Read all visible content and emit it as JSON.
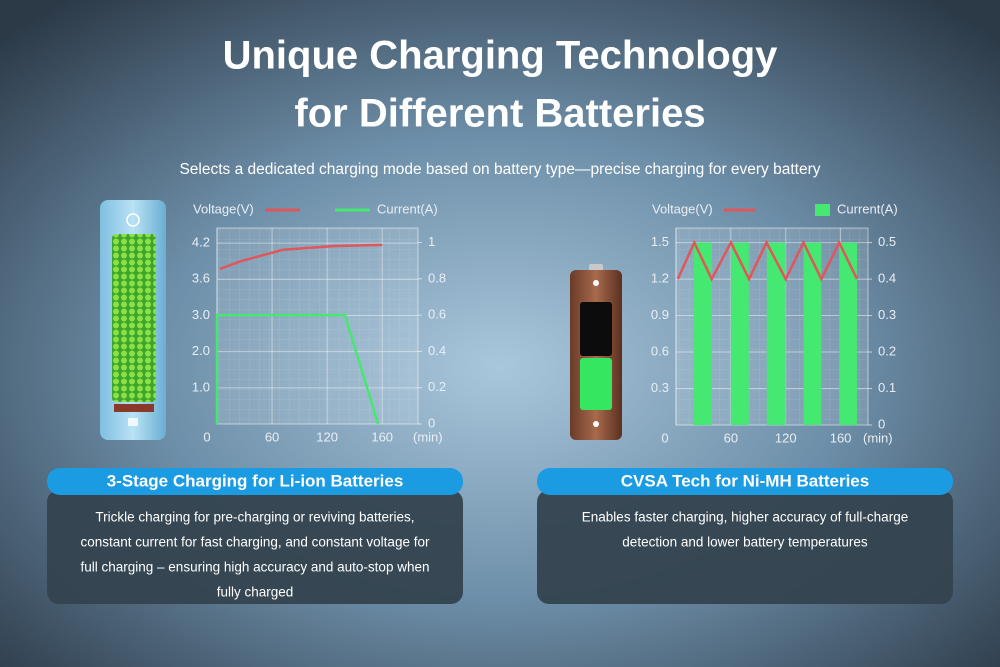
{
  "title": [
    "Unique Charging Technology",
    "for Different Batteries"
  ],
  "subtitle": "Selects a dedicated charging mode based on battery type—precise charging for every battery",
  "chart_data": [
    {
      "type": "line",
      "grid": true,
      "xlabel": "(min)",
      "xlim": [
        0,
        186
      ],
      "xticks": [
        0,
        60,
        120,
        160
      ],
      "ylim": [
        0,
        4.45
      ],
      "yticks": [
        {
          "value": 1,
          "label": "1.0"
        },
        {
          "value": 2,
          "label": "2.0"
        },
        {
          "value": 3,
          "label": "3.0"
        },
        3.6,
        4.2
      ],
      "y2lim": [
        0,
        1.08
      ],
      "y2ticks": [
        0,
        0.2,
        0.4,
        0.6,
        0.8,
        1
      ],
      "series": [
        {
          "name": "Voltage(V)",
          "color": "#e0575b",
          "x": [
            3,
            26,
            72,
            124,
            160
          ],
          "values": [
            3.77,
            3.9,
            4.09,
            4.15,
            4.17
          ]
        },
        {
          "name": "Current(A)",
          "color": "#45e870",
          "axis": "y2",
          "x": [
            0,
            0,
            133,
            157
          ],
          "values": [
            0,
            0.6,
            0.6,
            0
          ]
        }
      ]
    },
    {
      "type": "line",
      "grid": true,
      "xlabel": "(min)",
      "xlim": [
        0,
        180
      ],
      "xticks": [
        0,
        60,
        120,
        160
      ],
      "ylim": [
        0,
        1.62
      ],
      "yticks": [
        0.3,
        0.6,
        0.9,
        1.2,
        1.5
      ],
      "y2lim": [
        0,
        0.54
      ],
      "y2ticks": [
        0,
        0.1,
        0.2,
        0.3,
        0.4,
        0.5
      ],
      "series": [
        {
          "name": "Voltage(V)",
          "color": "#e0575b",
          "x": [
            2,
            20,
            39,
            60,
            80,
            99,
            120,
            133,
            146,
            159,
            172
          ],
          "values": [
            1.2,
            1.5,
            1.2,
            1.5,
            1.2,
            1.5,
            1.2,
            1.5,
            1.2,
            1.5,
            1.2
          ]
        },
        {
          "name": "Current(A)",
          "color": "#45e870",
          "axis": "y2",
          "type": "bar",
          "x": [
            [
              19.6,
              39.3
            ],
            [
              60,
              79.6
            ],
            [
              99.3,
              120
            ],
            [
              133,
              146
            ],
            [
              159,
              172
            ]
          ],
          "values": [
            0.5,
            0.5,
            0.5,
            0.5,
            0.5
          ]
        }
      ]
    }
  ],
  "cards": [
    {
      "heading": "3-Stage Charging for Li-ion Batteries",
      "lines": [
        "Trickle charging for pre-charging or reviving batteries,",
        "constant current for fast charging, and constant voltage for",
        "full charging – ensuring high accuracy and auto-stop when",
        "fully charged"
      ]
    },
    {
      "heading": "CVSA Tech for Ni-MH Batteries",
      "lines": [
        "Enables faster charging, higher accuracy of full-charge",
        "detection and lower battery temperatures"
      ]
    }
  ]
}
